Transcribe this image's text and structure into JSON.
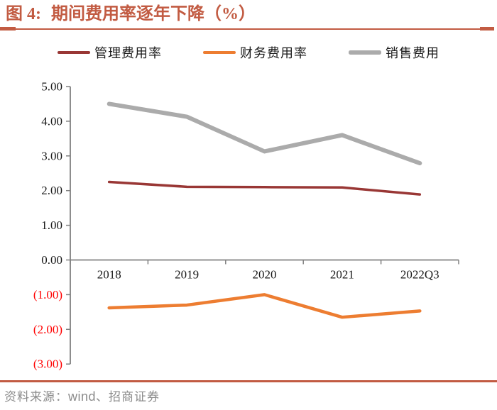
{
  "title": {
    "prefix": "图 4:",
    "text": "期间费用率逐年下降（%）"
  },
  "legend": [
    {
      "label": "管理费用率",
      "color": "#993735"
    },
    {
      "label": "财务费用率",
      "color": "#ED7D31"
    },
    {
      "label": "销售费用",
      "color": "#ABABAB"
    }
  ],
  "chart_data": {
    "type": "line",
    "categories": [
      "2018",
      "2019",
      "2020",
      "2021",
      "2022Q3"
    ],
    "series": [
      {
        "name": "管理费用率",
        "color": "#993735",
        "stroke_width": 3.5,
        "values": [
          2.25,
          2.11,
          2.1,
          2.09,
          1.89
        ]
      },
      {
        "name": "财务费用率",
        "color": "#ED7D31",
        "stroke_width": 4.5,
        "values": [
          -1.38,
          -1.3,
          -1.0,
          -1.65,
          -1.47
        ]
      },
      {
        "name": "销售费用",
        "color": "#ABABAB",
        "stroke_width": 6.0,
        "values": [
          4.5,
          4.13,
          3.13,
          3.6,
          2.79
        ]
      }
    ],
    "title": "期间费用率逐年下降（%）",
    "xlabel": "",
    "ylabel": "",
    "ylim": [
      -3,
      5
    ],
    "ytick_step": 1,
    "ytick_labels": [
      "5.00",
      "4.00",
      "3.00",
      "2.00",
      "1.00",
      "0.00",
      "(1.00)",
      "(2.00)",
      "(3.00)"
    ],
    "grid": false,
    "legend_position": "top",
    "axis_color": "#808080",
    "tick_label_color": "#1a1a1a",
    "negative_tick_label_color": "#FF0000"
  },
  "footer": {
    "prefix": "资料来源：",
    "wind": "wind",
    "suffix": "、招商证券"
  },
  "colors": {
    "accent": "#C25B42",
    "background": "#ffffff"
  }
}
